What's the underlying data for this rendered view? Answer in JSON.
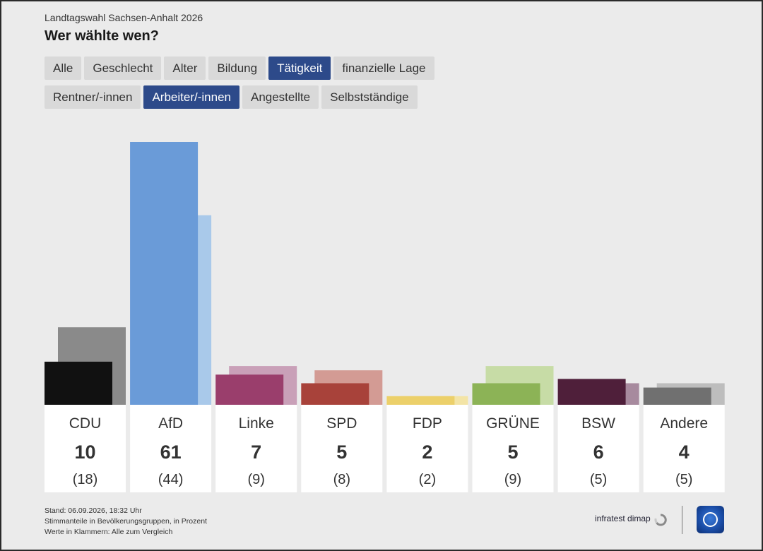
{
  "header": {
    "overline": "Landtagswahl Sachsen-Anhalt 2026",
    "title": "Wer wählte wen?"
  },
  "tabs_main": [
    {
      "label": "Alle",
      "active": false
    },
    {
      "label": "Geschlecht",
      "active": false
    },
    {
      "label": "Alter",
      "active": false
    },
    {
      "label": "Bildung",
      "active": false
    },
    {
      "label": "Tätigkeit",
      "active": true
    },
    {
      "label": "finanzielle Lage",
      "active": false
    }
  ],
  "tabs_sub": [
    {
      "label": "Rentner/-innen",
      "active": false
    },
    {
      "label": "Arbeiter/-innen",
      "active": true
    },
    {
      "label": "Angestellte",
      "active": false
    },
    {
      "label": "Selbstständige",
      "active": false
    }
  ],
  "chart_data": {
    "type": "bar",
    "categories": [
      "CDU",
      "AfD",
      "Linke",
      "SPD",
      "FDP",
      "GRÜNE",
      "BSW",
      "Andere"
    ],
    "series": [
      {
        "values": [
          10,
          61,
          7,
          5,
          2,
          5,
          6,
          4
        ]
      },
      {
        "values": [
          18,
          44,
          9,
          8,
          2,
          9,
          5,
          5
        ]
      }
    ],
    "value_labels": [
      "10",
      "61",
      "7",
      "5",
      "2",
      "5",
      "6",
      "4"
    ],
    "comparison_labels": [
      "(18)",
      "(44)",
      "(9)",
      "(8)",
      "(2)",
      "(9)",
      "(5)",
      "(5)"
    ],
    "colors": [
      "#111111",
      "#6a9bd8",
      "#9a3e6c",
      "#a8423a",
      "#ecd06a",
      "#8cb356",
      "#4f1f3a",
      "#707070"
    ],
    "comparison_colors": [
      "#8a8a8a",
      "#a9c9ea",
      "#c9a0b8",
      "#d39b94",
      "#f3e4a6",
      "#c7dca6",
      "#a78a9e",
      "#bdbdbd"
    ],
    "ylim": [
      0,
      61
    ],
    "grid": false
  },
  "footer": {
    "stand": "Stand: 06.09.2026, 18:32 Uhr",
    "note1": "Stimmanteile in Bevölkerungsgruppen, in Prozent",
    "note2": "Werte in Klammern: Alle zum Vergleich"
  },
  "branding": {
    "source": "infratest dimap",
    "source_icon": "infratest-dimap-icon",
    "logo_icon": "ard-logo-icon"
  }
}
